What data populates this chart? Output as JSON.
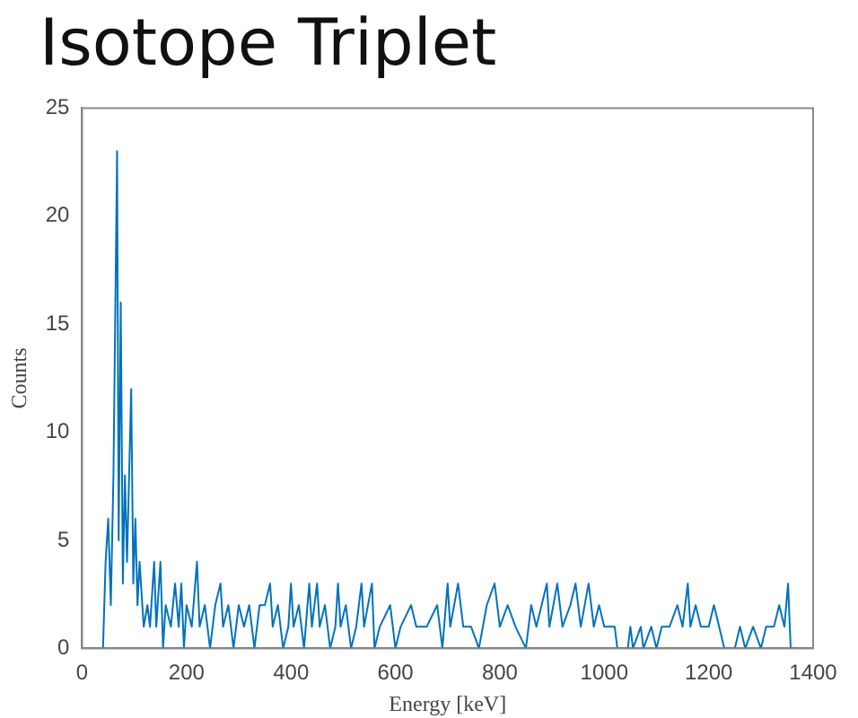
{
  "chart_data": {
    "type": "line",
    "title": "Isotope Triplet",
    "xlabel": "Energy [keV]",
    "ylabel": "Counts",
    "x": [
      40,
      45,
      50,
      55,
      60,
      67,
      70,
      74,
      78,
      82,
      86,
      94,
      98,
      102,
      106,
      110,
      118,
      125,
      130,
      138,
      142,
      150,
      155,
      160,
      170,
      178,
      185,
      190,
      195,
      200,
      210,
      220,
      225,
      235,
      245,
      255,
      265,
      270,
      280,
      290,
      300,
      310,
      320,
      330,
      340,
      350,
      360,
      365,
      375,
      385,
      395,
      400,
      405,
      415,
      425,
      435,
      440,
      450,
      455,
      465,
      475,
      485,
      490,
      495,
      505,
      515,
      525,
      535,
      540,
      555,
      560,
      570,
      590,
      600,
      610,
      630,
      640,
      660,
      680,
      690,
      700,
      705,
      720,
      730,
      745,
      760,
      775,
      790,
      800,
      815,
      830,
      850,
      860,
      870,
      890,
      895,
      910,
      920,
      935,
      945,
      955,
      970,
      980,
      990,
      1000,
      1020,
      1025,
      1045,
      1050,
      1055,
      1070,
      1075,
      1090,
      1100,
      1110,
      1125,
      1140,
      1150,
      1160,
      1165,
      1175,
      1185,
      1200,
      1210,
      1220,
      1230,
      1250,
      1260,
      1270,
      1285,
      1300,
      1310,
      1325,
      1335,
      1345,
      1352,
      1357,
      1370
    ],
    "series": [
      {
        "color": "#0072bd",
        "values": [
          0,
          4,
          6,
          2,
          8,
          23,
          5,
          16,
          3,
          8,
          4,
          12,
          3,
          6,
          2,
          4,
          1,
          2,
          1,
          4,
          1,
          4,
          0,
          2,
          1,
          3,
          1,
          3,
          0,
          2,
          1,
          4,
          1,
          2,
          0,
          2,
          3,
          1,
          2,
          0,
          2,
          1,
          2,
          0,
          2,
          2,
          3,
          1,
          2,
          0,
          1,
          3,
          1,
          2,
          0,
          3,
          1,
          3,
          1,
          2,
          0,
          1,
          3,
          1,
          2,
          0,
          1,
          3,
          1,
          3,
          0,
          1,
          2,
          0,
          1,
          2,
          1,
          1,
          2,
          0,
          3,
          1,
          3,
          1,
          1,
          0,
          2,
          3,
          1,
          2,
          1,
          0,
          2,
          1,
          3,
          1,
          3,
          1,
          2,
          3,
          1,
          3,
          1,
          2,
          1,
          1,
          0,
          0,
          1,
          0,
          1,
          0,
          1,
          0,
          1,
          1,
          2,
          1,
          3,
          1,
          2,
          1,
          1,
          2,
          1,
          0,
          0,
          1,
          0,
          1,
          0,
          1,
          1,
          2,
          1,
          3,
          0,
          0
        ]
      }
    ],
    "xlim": [
      0,
      1400
    ],
    "xticks": [
      0,
      200,
      400,
      600,
      800,
      1000,
      1200,
      1400
    ],
    "ylim": [
      0,
      25
    ],
    "yticks": [
      0,
      5,
      10,
      15,
      20,
      25
    ],
    "grid": false,
    "marker": "none",
    "line_style": "solid"
  }
}
